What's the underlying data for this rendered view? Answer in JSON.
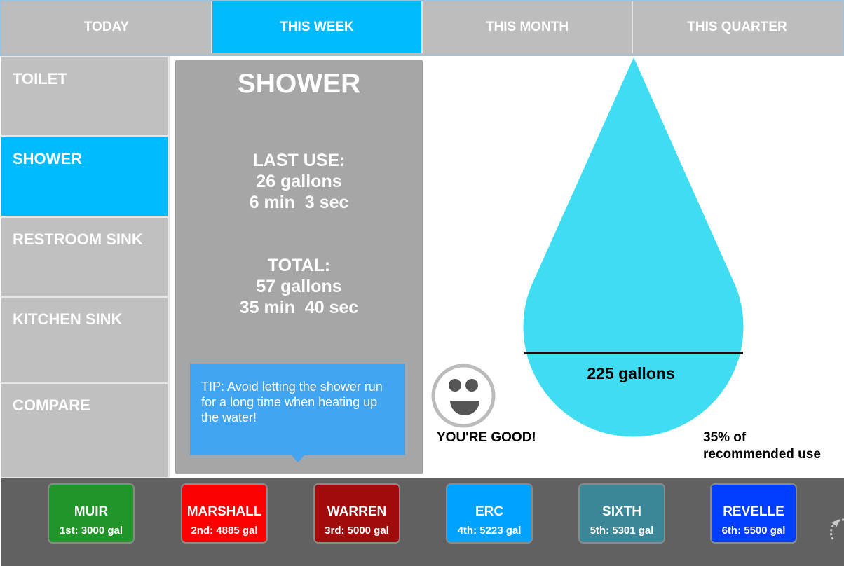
{
  "tabs": [
    {
      "label": "TODAY",
      "active": false
    },
    {
      "label": "THIS WEEK",
      "active": true
    },
    {
      "label": "THIS MONTH",
      "active": false
    },
    {
      "label": "THIS QUARTER",
      "active": false
    }
  ],
  "sidebar": {
    "items": [
      {
        "label": "TOILET",
        "active": false
      },
      {
        "label": "SHOWER",
        "active": true
      },
      {
        "label": "RESTROOM SINK",
        "active": false
      },
      {
        "label": "KITCHEN SINK",
        "active": false
      },
      {
        "label": "COMPARE",
        "active": false
      }
    ]
  },
  "card": {
    "title": "SHOWER",
    "last_use_label": "LAST USE:",
    "last_use_gallons": "26 gallons",
    "last_use_time": "6 min  3 sec",
    "total_label": "TOTAL:",
    "total_gallons": "57 gallons",
    "total_time": "35 min  40 sec"
  },
  "tip": {
    "text": "TIP: Avoid letting the shower run for a long time when heating up the water!"
  },
  "drop": {
    "label": "225 gallons",
    "color": "#40dcf2"
  },
  "status": {
    "message": "YOU'RE GOOD!",
    "percent_line1": "35% of",
    "percent_line2": "recommended use",
    "icon": "smiley-face-icon"
  },
  "colleges": [
    {
      "name": "MUIR",
      "rank": "1st: 3000 gal",
      "color": "#21942a"
    },
    {
      "name": "MARSHALL",
      "rank": "2nd: 4885 gal",
      "color": "#fb0000"
    },
    {
      "name": "WARREN",
      "rank": "3rd: 5000 gal",
      "color": "#a10b0b"
    },
    {
      "name": "ERC",
      "rank": "4th: 5223 gal",
      "color": "#00a2ff"
    },
    {
      "name": "SIXTH",
      "rank": "5th: 5301 gal",
      "color": "#3b8797"
    },
    {
      "name": "REVELLE",
      "rank": "6th: 5500 gal",
      "color": "#003dff"
    }
  ],
  "colors": {
    "accent": "#00bcff",
    "tab_inactive": "#bdbdbd",
    "sidebar_item": "#c0c0c0",
    "card": "#a6a6a6",
    "tip": "#42a5f1",
    "bottom_bar": "#616161"
  }
}
